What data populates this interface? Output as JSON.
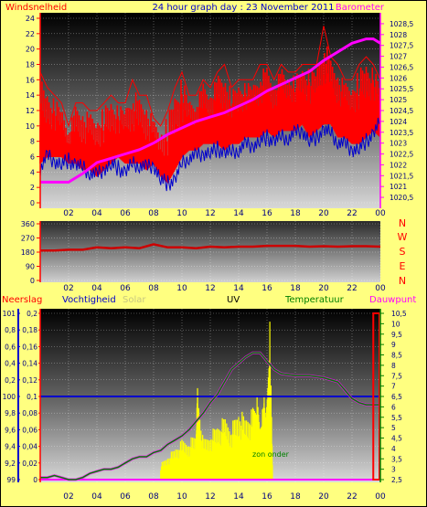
{
  "title": "24 hour graph day : 23 November 2011",
  "x_tick_labels": [
    "02",
    "04",
    "06",
    "08",
    "10",
    "12",
    "14",
    "16",
    "18",
    "20",
    "22",
    "00"
  ],
  "colors": {
    "background": "#ffff80",
    "wind": "#ff0000",
    "wind_dir": "#cc0000",
    "gust_avg": "#0000cc",
    "barometer": "#ff00ff",
    "humidity": "#0000cc",
    "temperature": "#008000",
    "dewpoint": "#ff00ff",
    "rain": "#ff0000",
    "solar": "#ffff00",
    "uv": "#ffffff"
  },
  "chart_data": [
    {
      "type": "line",
      "name": "wind-barometer",
      "left_label": "Windsnelheid",
      "right_label": "Barometer",
      "y_left_ticks": [
        "0",
        "2",
        "4",
        "6",
        "8",
        "10",
        "12",
        "14",
        "16",
        "18",
        "20",
        "22",
        "24"
      ],
      "y_left_range": [
        0,
        24
      ],
      "y_right_ticks": [
        "1020,5",
        "1021",
        "1021,5",
        "1022",
        "1022,5",
        "1023",
        "1023,5",
        "1024",
        "1024,5",
        "1025",
        "1025,5",
        "1026",
        "1026,5",
        "1027",
        "1027,5",
        "1028",
        "1028,5"
      ],
      "y_right_range": [
        1020.25,
        1028.75
      ],
      "x_range_hours": [
        0,
        24
      ],
      "series": [
        {
          "key": "wind",
          "style": "area-spiky",
          "x": [
            0,
            0.5,
            1,
            1.5,
            2,
            2.5,
            3,
            3.5,
            4,
            4.5,
            5,
            5.5,
            6,
            6.5,
            7,
            7.5,
            8,
            8.5,
            9,
            9.5,
            10,
            10.5,
            11,
            11.5,
            12,
            12.5,
            13,
            13.5,
            14,
            14.5,
            15,
            15.5,
            16,
            16.5,
            17,
            17.5,
            18,
            18.5,
            19,
            19.5,
            20,
            20.5,
            21,
            21.5,
            22,
            22.5,
            23,
            23.5,
            24
          ],
          "low": [
            6,
            7,
            7,
            7,
            6,
            6,
            5,
            5,
            4,
            5,
            6,
            7,
            6,
            6,
            6,
            5,
            6,
            4,
            3,
            5,
            7,
            8,
            8,
            9,
            9,
            9,
            8,
            9,
            9,
            10,
            10,
            10,
            11,
            10,
            11,
            11,
            11,
            12,
            10,
            11,
            12,
            12,
            10,
            10,
            9,
            9,
            10,
            11,
            10
          ],
          "high": [
            17,
            15,
            14,
            13,
            10,
            13,
            13,
            12,
            12,
            13,
            14,
            13,
            13,
            16,
            14,
            14,
            11,
            10,
            12,
            15,
            17,
            14,
            14,
            16,
            15,
            17,
            18,
            15,
            16,
            16,
            16,
            18,
            18,
            16,
            18,
            17,
            17,
            18,
            18,
            18,
            23,
            19,
            18,
            16,
            16,
            18,
            19,
            18,
            16
          ]
        },
        {
          "key": "gust_avg",
          "style": "line",
          "x": [
            0,
            0.5,
            1,
            1.5,
            2,
            2.5,
            3,
            3.5,
            4,
            4.5,
            5,
            5.5,
            6,
            6.5,
            7,
            7.5,
            8,
            8.5,
            9,
            9.5,
            10,
            10.5,
            11,
            11.5,
            12,
            12.5,
            13,
            13.5,
            14,
            14.5,
            15,
            15.5,
            16,
            16.5,
            17,
            17.5,
            18,
            18.5,
            19,
            19.5,
            20,
            20.5,
            21,
            21.5,
            22,
            22.5,
            23,
            23.5,
            24
          ],
          "values": [
            4.5,
            6,
            5.5,
            5,
            5.5,
            5,
            4.5,
            4,
            3.5,
            4.5,
            5,
            4.5,
            4,
            5,
            5,
            4.5,
            5,
            3,
            2.5,
            3,
            5,
            6,
            6,
            6.5,
            6.5,
            7,
            6.5,
            6.5,
            7,
            7.5,
            7.5,
            8,
            8.5,
            8,
            8.5,
            8.5,
            9,
            9.5,
            8,
            8.5,
            9.5,
            9,
            8,
            7.5,
            7,
            7,
            8,
            9,
            10.5
          ]
        },
        {
          "key": "barometer",
          "style": "line",
          "axis": "right",
          "x": [
            0,
            1,
            2,
            3,
            4,
            5,
            6,
            7,
            8,
            9,
            10,
            11,
            12,
            13,
            14,
            15,
            16,
            17,
            18,
            19,
            20,
            21,
            22,
            23,
            23.5,
            24
          ],
          "values": [
            1021.2,
            1021.2,
            1021.2,
            1021.6,
            1022.1,
            1022.3,
            1022.5,
            1022.7,
            1023.0,
            1023.4,
            1023.7,
            1024.0,
            1024.2,
            1024.4,
            1024.7,
            1025.0,
            1025.4,
            1025.7,
            1026.0,
            1026.3,
            1026.8,
            1027.2,
            1027.6,
            1027.8,
            1027.8,
            1027.6
          ]
        }
      ]
    },
    {
      "type": "line",
      "name": "wind-direction",
      "y_left_ticks": [
        "0",
        "90",
        "180",
        "270",
        "360"
      ],
      "y_range": [
        0,
        360
      ],
      "right_letters": [
        "N",
        "W",
        "S",
        "E",
        "N"
      ],
      "x_range_hours": [
        0,
        24
      ],
      "series": [
        {
          "key": "wind_dir",
          "x": [
            0,
            1,
            2,
            3,
            4,
            5,
            6,
            7,
            8,
            9,
            10,
            11,
            12,
            13,
            14,
            15,
            16,
            17,
            18,
            19,
            20,
            21,
            22,
            23,
            24
          ],
          "values": [
            190,
            190,
            195,
            195,
            210,
            205,
            210,
            205,
            230,
            210,
            210,
            205,
            215,
            210,
            215,
            215,
            220,
            220,
            220,
            215,
            218,
            215,
            218,
            218,
            215
          ]
        }
      ]
    },
    {
      "type": "line",
      "name": "rain-humidity-uv-temp",
      "legend": [
        "Neerslag",
        "Vochtigheid",
        "Solar",
        "UV",
        "Temperatuur",
        "Dauwpunt"
      ],
      "y_rain_ticks": [
        "0",
        "0,02",
        "0,04",
        "0,06",
        "0,08",
        "0,1",
        "0,12",
        "0,14",
        "0,16",
        "0,18",
        "0,2"
      ],
      "y_rain_range": [
        0,
        0.2
      ],
      "y_hum_ticks": [
        "99",
        "9,2",
        "9,4",
        "9,6",
        "9,8",
        "100",
        "0,2",
        "0,4",
        "0,6",
        "0,8",
        "101"
      ],
      "y_temp_ticks": [
        "2,5",
        "3",
        "3,5",
        "4",
        "4,5",
        "5",
        "5,5",
        "6",
        "6,5",
        "7",
        "7,5",
        "8",
        "8,5",
        "9",
        "9,5",
        "10",
        "10,5"
      ],
      "y_temp_range": [
        2.5,
        10.5
      ],
      "x_range_hours": [
        0,
        24
      ],
      "annotation": "zon onder",
      "series": [
        {
          "key": "temperature",
          "axis": "temp",
          "x": [
            0,
            0.5,
            1,
            1.5,
            2,
            2.5,
            3,
            3.5,
            4,
            4.5,
            5,
            5.5,
            6,
            6.5,
            7,
            7.5,
            8,
            8.5,
            9,
            9.5,
            10,
            10.5,
            11,
            11.5,
            12,
            12.5,
            13,
            13.5,
            14,
            14.5,
            15,
            15.5,
            16,
            16.5,
            17,
            18,
            19,
            20,
            21,
            22,
            22.5,
            23,
            23.5,
            24
          ],
          "values": [
            2.6,
            2.6,
            2.7,
            2.6,
            2.5,
            2.5,
            2.6,
            2.8,
            2.9,
            3.0,
            3.0,
            3.1,
            3.3,
            3.5,
            3.6,
            3.6,
            3.8,
            3.9,
            4.2,
            4.4,
            4.6,
            4.9,
            5.3,
            5.7,
            6.2,
            6.6,
            7.2,
            7.8,
            8.1,
            8.4,
            8.6,
            8.6,
            8.2,
            7.8,
            7.6,
            7.5,
            7.5,
            7.4,
            7.2,
            6.4,
            6.2,
            6.1,
            6.1,
            6.1
          ]
        },
        {
          "key": "dewpoint",
          "axis": "temp",
          "x": [
            0,
            1,
            2,
            3,
            4,
            5,
            6,
            7,
            8,
            9,
            10,
            11,
            12,
            13,
            14,
            15,
            15.5,
            16,
            16.5,
            17,
            18,
            19,
            20,
            21,
            22,
            22.5,
            23,
            24
          ],
          "values": [
            2.5,
            2.5,
            2.5,
            2.5,
            2.5,
            2.5,
            2.5,
            2.5,
            2.5,
            2.5,
            2.5,
            2.5,
            2.5,
            2.5,
            2.5,
            2.5,
            2.5,
            2.5,
            2.5,
            2.5,
            2.5,
            2.5,
            2.5,
            2.5,
            2.5,
            2.5,
            2.5,
            2.5
          ]
        },
        {
          "key": "humidity",
          "axis": "hum",
          "x": [
            0,
            24
          ],
          "values": [
            100,
            100
          ]
        },
        {
          "key": "solar",
          "axis": "rain",
          "style": "bars",
          "x": [
            8.5,
            9,
            9.5,
            10,
            10.5,
            11,
            11.1,
            11.5,
            12,
            12.5,
            13,
            13.5,
            14,
            14.5,
            15,
            15.3,
            15.5,
            15.8,
            16,
            16.2,
            16.4
          ],
          "values": [
            0.02,
            0.03,
            0.04,
            0.05,
            0.05,
            0.06,
            0.11,
            0.05,
            0.06,
            0.07,
            0.08,
            0.07,
            0.09,
            0.08,
            0.09,
            0.1,
            0.07,
            0.1,
            0.09,
            0.19,
            0.01
          ]
        },
        {
          "key": "rain_bar",
          "axis": "rain",
          "style": "outline-bar",
          "x": [
            23.5,
            24
          ],
          "values": [
            0.2,
            0.2
          ]
        }
      ]
    }
  ]
}
